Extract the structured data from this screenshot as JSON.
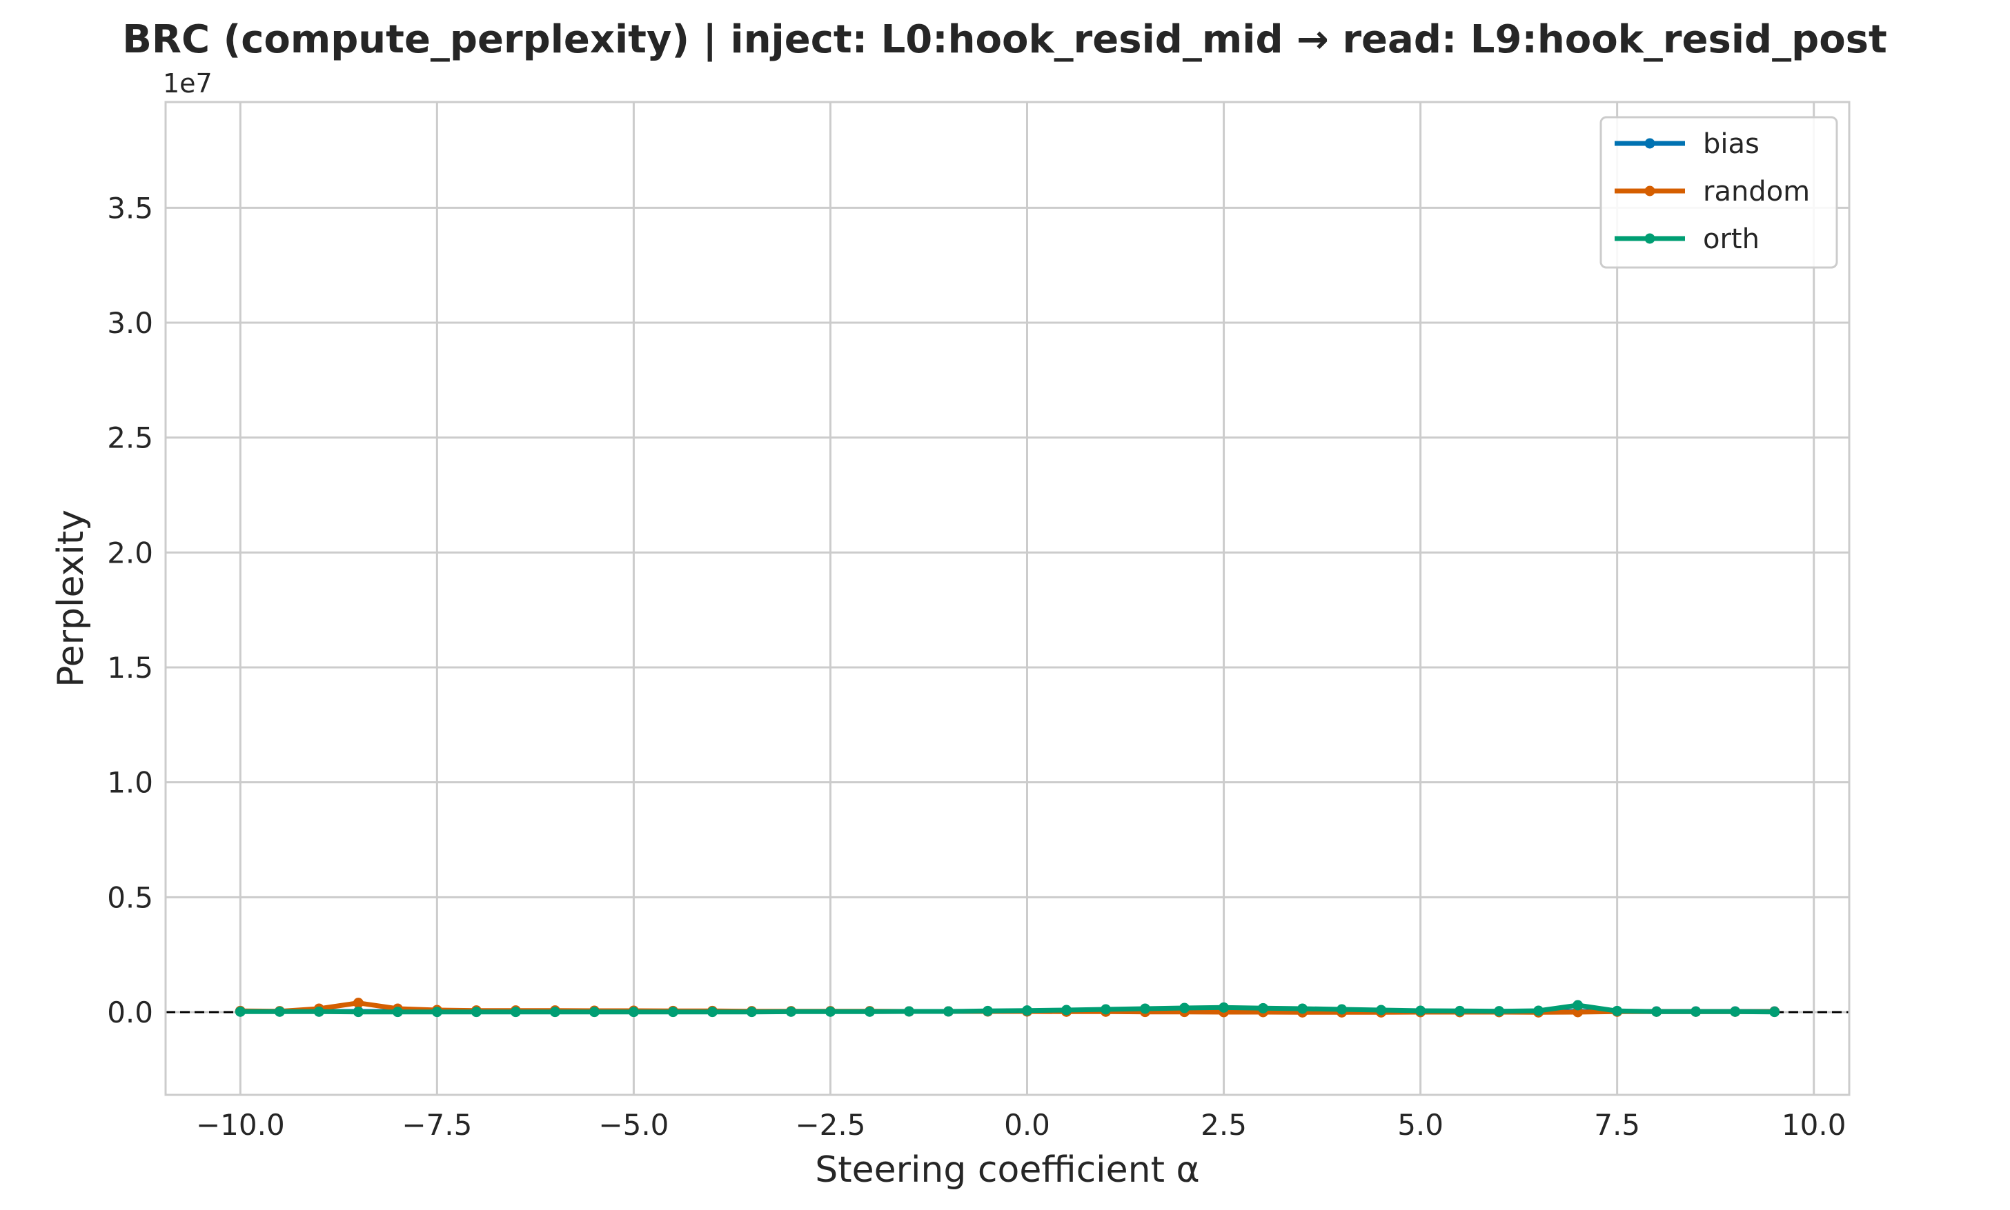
{
  "chart_data": {
    "type": "line",
    "title": "BRC (compute_perplexity) | inject: L0:hook_resid_mid → read: L9:hook_resid_post",
    "xlabel": "Steering coefficient α",
    "ylabel": "Perplexity",
    "y_offset_label": "1e7",
    "xlim": [
      -10.95,
      10.45
    ],
    "ylim": [
      -3600000,
      39600000
    ],
    "x_ticks": [
      -10.0,
      -7.5,
      -5.0,
      -2.5,
      0.0,
      2.5,
      5.0,
      7.5,
      10.0
    ],
    "x_tick_labels": [
      "−10.0",
      "−7.5",
      "−5.0",
      "−2.5",
      "0.0",
      "2.5",
      "5.0",
      "7.5",
      "10.0"
    ],
    "y_ticks": [
      0,
      5000000,
      10000000,
      15000000,
      20000000,
      25000000,
      30000000,
      35000000
    ],
    "y_tick_labels": [
      "0.0",
      "0.5",
      "1.0",
      "1.5",
      "2.0",
      "2.5",
      "3.0",
      "3.5"
    ],
    "grid": true,
    "legend_position": "top-right",
    "reference_line": {
      "y": 0,
      "style": "dashed",
      "color": "#000000"
    },
    "x": [
      -10.0,
      -9.5,
      -9.0,
      -8.5,
      -8.0,
      -7.5,
      -7.0,
      -6.5,
      -6.0,
      -5.5,
      -5.0,
      -4.5,
      -4.0,
      -3.5,
      -3.0,
      -2.5,
      -2.0,
      -1.5,
      -1.0,
      -0.5,
      0.0,
      0.5,
      1.0,
      1.5,
      2.0,
      2.5,
      3.0,
      3.5,
      4.0,
      4.5,
      5.0,
      5.5,
      6.0,
      6.5,
      7.0,
      7.5,
      8.0,
      8.5,
      9.0,
      9.5
    ],
    "series": [
      {
        "name": "bias",
        "color": "#0072B2",
        "values": [
          30000,
          30000,
          30000,
          30000,
          30000,
          30000,
          30000,
          30000,
          30000,
          30000,
          30000,
          30000,
          30000,
          30000,
          30000,
          30000,
          30000,
          30000,
          30000,
          30000,
          30000,
          30000,
          30000,
          30000,
          30000,
          30000,
          30000,
          30000,
          30000,
          30000,
          30000,
          30000,
          30000,
          30000,
          30000,
          30000,
          30000,
          30000,
          30000,
          30000
        ]
      },
      {
        "name": "random",
        "color": "#D55E00",
        "values": [
          50000,
          40000,
          150000,
          400000,
          150000,
          90000,
          70000,
          70000,
          70000,
          60000,
          60000,
          50000,
          50000,
          40000,
          40000,
          40000,
          40000,
          30000,
          30000,
          30000,
          30000,
          20000,
          20000,
          10000,
          10000,
          0,
          0,
          -10000,
          -10000,
          -10000,
          0,
          0,
          0,
          -10000,
          0,
          20000,
          20000,
          20000,
          20000,
          20000
        ]
      },
      {
        "name": "orth",
        "color": "#009E73",
        "values": [
          20000,
          20000,
          20000,
          10000,
          10000,
          10000,
          10000,
          10000,
          10000,
          10000,
          10000,
          10000,
          10000,
          10000,
          20000,
          20000,
          20000,
          30000,
          30000,
          50000,
          70000,
          90000,
          120000,
          150000,
          180000,
          200000,
          170000,
          150000,
          120000,
          90000,
          60000,
          50000,
          40000,
          60000,
          300000,
          50000,
          20000,
          20000,
          20000,
          10000
        ]
      }
    ]
  }
}
